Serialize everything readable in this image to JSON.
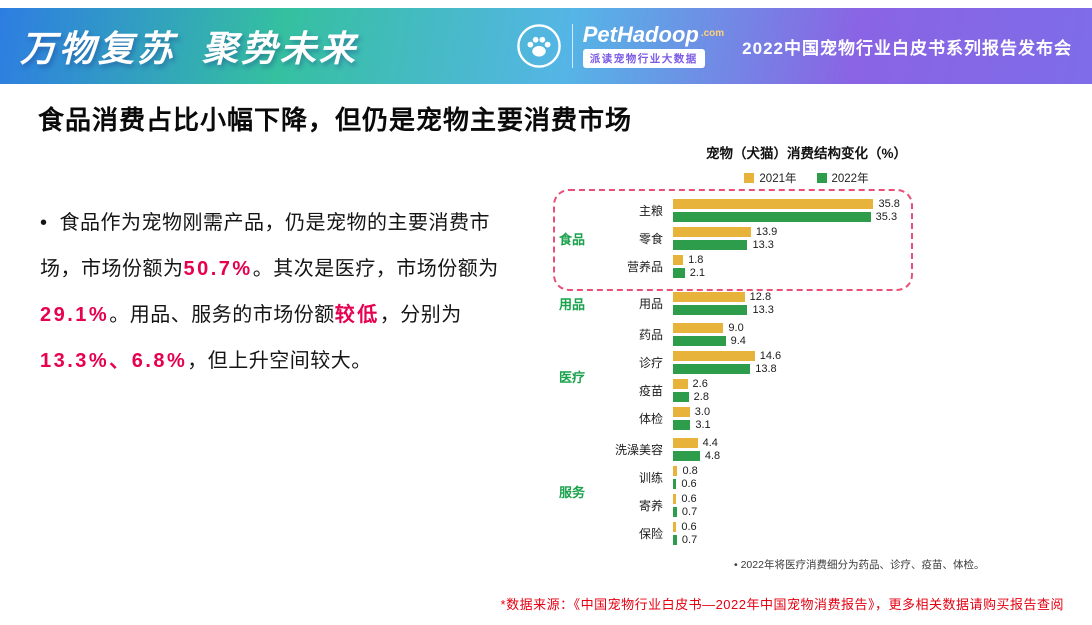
{
  "header": {
    "slogan_left": "万物复苏",
    "slogan_right": "聚势未来",
    "brand": {
      "name": "PetHadoop",
      "suffix": ".com",
      "subtitle": "派读宠物行业大数据"
    },
    "event_title": "2022中国宠物行业白皮书系列报告发布会"
  },
  "main": {
    "title": "食品消费占比小幅下降，但仍是宠物主要消费市场",
    "bullet_marker": "•",
    "paragraph": [
      {
        "text": "食品作为宠物刚需产品，仍是宠物的主要消费市场，市场份额为",
        "highlight": false
      },
      {
        "text": "50.7%",
        "highlight": true
      },
      {
        "text": "。其次是医疗，市场份额为",
        "highlight": false
      },
      {
        "text": "29.1%",
        "highlight": true
      },
      {
        "text": "。用品、服务的市场份额",
        "highlight": false
      },
      {
        "text": "较低",
        "highlight": true
      },
      {
        "text": "，分别为",
        "highlight": false
      },
      {
        "text": "13.3%、6.8%",
        "highlight": true
      },
      {
        "text": "，但上升空间较大。",
        "highlight": false
      }
    ]
  },
  "chart_data": {
    "type": "bar",
    "orientation": "horizontal",
    "title": "宠物（犬猫）消费结构变化（%）",
    "xlim": [
      0,
      40
    ],
    "series": [
      {
        "name": "2021年",
        "color": "#e8b33b"
      },
      {
        "name": "2022年",
        "color": "#2e9d4b"
      }
    ],
    "groups": [
      {
        "name": "食品",
        "highlighted": true,
        "items": [
          {
            "label": "主粮",
            "values": [
              35.8,
              35.3
            ]
          },
          {
            "label": "零食",
            "values": [
              13.9,
              13.3
            ]
          },
          {
            "label": "营养品",
            "values": [
              1.8,
              2.1
            ]
          }
        ]
      },
      {
        "name": "用品",
        "highlighted": false,
        "items": [
          {
            "label": "用品",
            "values": [
              12.8,
              13.3
            ]
          }
        ]
      },
      {
        "name": "医疗",
        "highlighted": false,
        "items": [
          {
            "label": "药品",
            "values": [
              9.0,
              9.4
            ]
          },
          {
            "label": "诊疗",
            "values": [
              14.6,
              13.8
            ]
          },
          {
            "label": "疫苗",
            "values": [
              2.6,
              2.8
            ]
          },
          {
            "label": "体检",
            "values": [
              3.0,
              3.1
            ]
          }
        ]
      },
      {
        "name": "服务",
        "highlighted": false,
        "items": [
          {
            "label": "洗澡美容",
            "values": [
              4.4,
              4.8
            ]
          },
          {
            "label": "训练",
            "values": [
              0.8,
              0.6
            ]
          },
          {
            "label": "寄养",
            "values": [
              0.6,
              0.7
            ]
          },
          {
            "label": "保险",
            "values": [
              0.6,
              0.7
            ]
          }
        ]
      }
    ],
    "note": "•  2022年将医疗消费细分为药品、诊疗、疫苗、体检。"
  },
  "footer": {
    "source": "*数据来源：《中国宠物行业白皮书—2022年中国宠物消费报告》，更多相关数据请购买报告查阅"
  },
  "colors": {
    "highlight_text": "#e60050",
    "footer_text": "#e60012",
    "group_label": "#1aa24b",
    "dashed_box": "#ea4f75",
    "bar_2021": "#e8b33b",
    "bar_2022": "#2e9d4b"
  }
}
